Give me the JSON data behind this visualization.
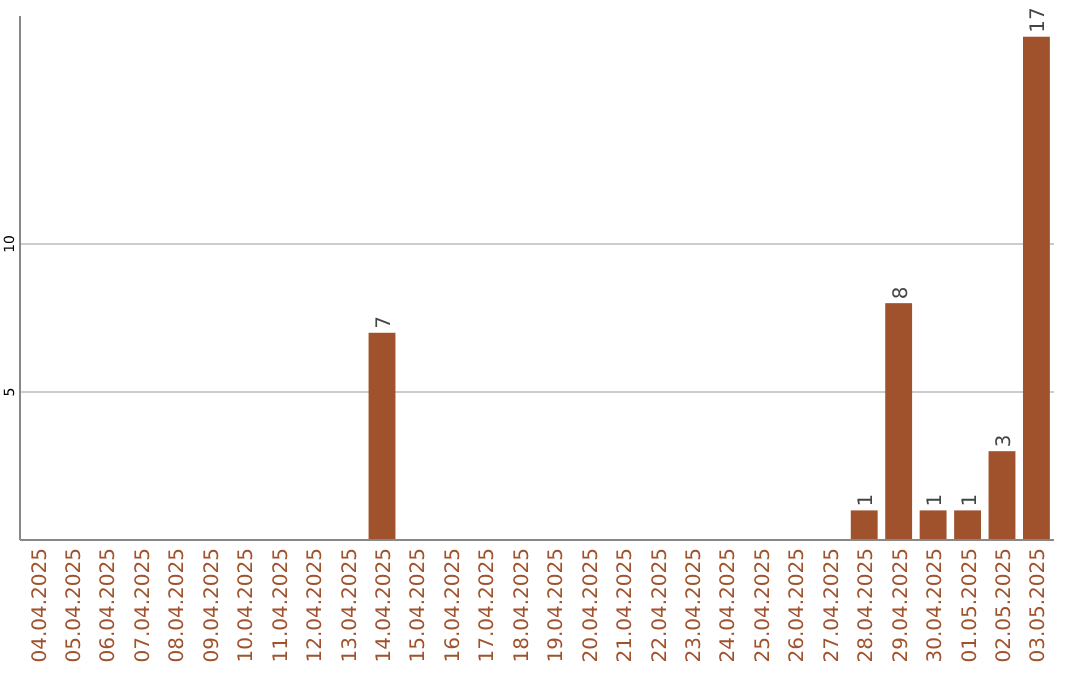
{
  "chart_data": {
    "type": "bar",
    "categories": [
      "04.04.2025",
      "05.04.2025",
      "06.04.2025",
      "07.04.2025",
      "08.04.2025",
      "09.04.2025",
      "10.04.2025",
      "11.04.2025",
      "12.04.2025",
      "13.04.2025",
      "14.04.2025",
      "15.04.2025",
      "16.04.2025",
      "17.04.2025",
      "18.04.2025",
      "19.04.2025",
      "20.04.2025",
      "21.04.2025",
      "22.04.2025",
      "23.04.2025",
      "24.04.2025",
      "25.04.2025",
      "26.04.2025",
      "27.04.2025",
      "28.04.2025",
      "29.04.2025",
      "30.04.2025",
      "01.05.2025",
      "02.05.2025",
      "03.05.2025"
    ],
    "values": [
      0,
      0,
      0,
      0,
      0,
      0,
      0,
      0,
      0,
      0,
      7,
      0,
      0,
      0,
      0,
      0,
      0,
      0,
      0,
      0,
      0,
      0,
      0,
      0,
      1,
      8,
      1,
      1,
      3,
      17
    ],
    "value_labels": [
      null,
      null,
      null,
      null,
      null,
      null,
      null,
      null,
      null,
      null,
      "7",
      null,
      null,
      null,
      null,
      null,
      null,
      null,
      null,
      null,
      null,
      null,
      null,
      null,
      "1",
      "8",
      "1",
      "1",
      "3",
      "17"
    ],
    "color": "#a0522d",
    "ylim": [
      0,
      17.7
    ],
    "yticks": [
      5,
      10
    ],
    "grid": "y"
  }
}
